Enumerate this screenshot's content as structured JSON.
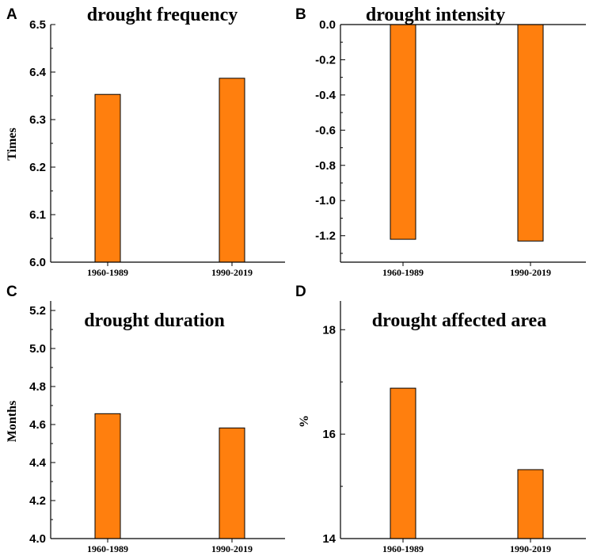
{
  "colors": {
    "bar_fill": "#FF7F0E",
    "bar_stroke": "#000000"
  },
  "chart_data": [
    {
      "panel": "A",
      "type": "bar",
      "title": "drought frequency",
      "ylabel": "Times",
      "categories": [
        "1960-1989",
        "1990-2019"
      ],
      "values": [
        6.353,
        6.387
      ],
      "ylim": [
        6.0,
        6.5
      ],
      "yticks": [
        "6.0",
        "6.1",
        "6.2",
        "6.3",
        "6.4",
        "6.5"
      ],
      "ytick_values": [
        6.0,
        6.1,
        6.2,
        6.3,
        6.4,
        6.5
      ],
      "minor_step": 0.05,
      "baseline": 6.0,
      "title_pos": "top-center"
    },
    {
      "panel": "B",
      "type": "bar",
      "title": "drought intensity",
      "ylabel": "",
      "categories": [
        "1960-1989",
        "1990-2019"
      ],
      "values": [
        -1.22,
        -1.23
      ],
      "ylim": [
        -1.35,
        0.0
      ],
      "yticks": [
        "0.0",
        "-0.2",
        "-0.4",
        "-0.6",
        "-0.8",
        "-1.0",
        "-1.2"
      ],
      "ytick_values": [
        0.0,
        -0.2,
        -0.4,
        -0.6,
        -0.8,
        -1.0,
        -1.2
      ],
      "minor_step": 0.1,
      "baseline": 0.0,
      "title_pos": "top-center"
    },
    {
      "panel": "C",
      "type": "bar",
      "title": "drought duration",
      "ylabel": "Months",
      "categories": [
        "1960-1989",
        "1990-2019"
      ],
      "values": [
        4.657,
        4.582
      ],
      "ylim": [
        4.0,
        5.25
      ],
      "yticks": [
        "4.0",
        "4.2",
        "4.4",
        "4.6",
        "4.8",
        "5.0",
        "5.2"
      ],
      "ytick_values": [
        4.0,
        4.2,
        4.4,
        4.6,
        4.8,
        5.0,
        5.2
      ],
      "minor_step": 0.1,
      "baseline": 4.0,
      "title_pos": "upper-center"
    },
    {
      "panel": "D",
      "type": "bar",
      "title": "drought affected area",
      "ylabel": "%",
      "categories": [
        "1960-1989",
        "1990-2019"
      ],
      "values": [
        16.88,
        15.32
      ],
      "ylim": [
        14.0,
        18.55
      ],
      "yticks": [
        "14",
        "16",
        "18"
      ],
      "ytick_values": [
        14,
        16,
        18
      ],
      "minor_step": 1,
      "baseline": 14.0,
      "title_pos": "upper-center"
    }
  ]
}
